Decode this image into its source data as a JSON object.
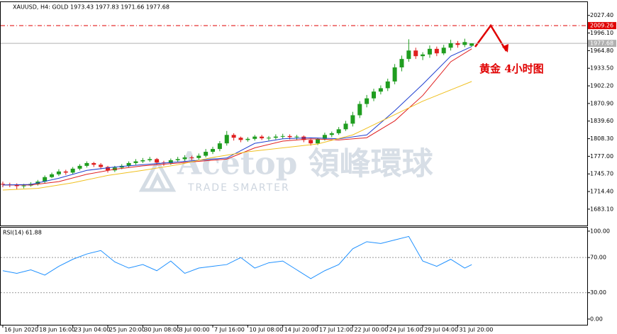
{
  "chart_data": [
    {
      "type": "candlestick",
      "title": "XAUUSD, H4:  GOLD  1973.43 1977.83 1971.66 1977.68",
      "up_color": "#1f9d1f",
      "down_color": "#e02020",
      "open": [
        1728,
        1727,
        1726,
        1724,
        1725,
        1728,
        1732,
        1740,
        1745,
        1750,
        1748,
        1755,
        1760,
        1765,
        1762,
        1758,
        1752,
        1757,
        1760,
        1765,
        1768,
        1770,
        1772,
        1766,
        1765,
        1770,
        1772,
        1775,
        1774,
        1778,
        1785,
        1790,
        1800,
        1815,
        1810,
        1806,
        1808,
        1812,
        1809,
        1810,
        1812,
        1813,
        1811,
        1812,
        1806,
        1800,
        1808,
        1815,
        1818,
        1825,
        1835,
        1850,
        1870,
        1880,
        1892,
        1898,
        1910,
        1935,
        1950,
        1965,
        1955,
        1958,
        1968,
        1960,
        1970,
        1978,
        1975,
        1973.43
      ],
      "high": [
        1732,
        1730,
        1729,
        1728,
        1731,
        1735,
        1743,
        1748,
        1754,
        1753,
        1758,
        1763,
        1768,
        1767,
        1765,
        1760,
        1760,
        1763,
        1768,
        1772,
        1774,
        1776,
        1774,
        1769,
        1773,
        1776,
        1779,
        1778,
        1782,
        1790,
        1794,
        1804,
        1822,
        1818,
        1812,
        1811,
        1815,
        1815,
        1813,
        1816,
        1817,
        1816,
        1815,
        1814,
        1808,
        1810,
        1819,
        1821,
        1829,
        1840,
        1856,
        1875,
        1886,
        1897,
        1903,
        1915,
        1941,
        1956,
        1985,
        1970,
        1962,
        1974,
        1972,
        1975,
        1984,
        1982,
        1986,
        1977.83
      ],
      "low": [
        1722,
        1722,
        1718,
        1720,
        1723,
        1725,
        1729,
        1738,
        1742,
        1744,
        1745,
        1752,
        1757,
        1758,
        1754,
        1748,
        1749,
        1754,
        1757,
        1762,
        1765,
        1767,
        1762,
        1760,
        1762,
        1767,
        1769,
        1770,
        1771,
        1775,
        1781,
        1786,
        1796,
        1805,
        1802,
        1803,
        1805,
        1806,
        1805,
        1807,
        1808,
        1807,
        1806,
        1802,
        1796,
        1797,
        1805,
        1811,
        1815,
        1822,
        1830,
        1845,
        1864,
        1875,
        1887,
        1893,
        1905,
        1928,
        1945,
        1950,
        1948,
        1952,
        1955,
        1957,
        1965,
        1970,
        1971,
        1971.66
      ],
      "close": [
        1727,
        1726,
        1724,
        1725,
        1728,
        1732,
        1740,
        1745,
        1750,
        1748,
        1755,
        1760,
        1765,
        1762,
        1758,
        1752,
        1757,
        1760,
        1765,
        1768,
        1770,
        1772,
        1766,
        1765,
        1770,
        1772,
        1775,
        1774,
        1778,
        1785,
        1790,
        1800,
        1815,
        1810,
        1806,
        1808,
        1812,
        1809,
        1810,
        1812,
        1813,
        1811,
        1812,
        1806,
        1800,
        1808,
        1815,
        1818,
        1825,
        1835,
        1850,
        1870,
        1880,
        1892,
        1898,
        1910,
        1935,
        1950,
        1965,
        1955,
        1958,
        1968,
        1960,
        1970,
        1978,
        1975,
        1980,
        1977.68
      ],
      "lines": [
        {
          "color": "#e02020",
          "x": [
            0,
            4,
            8,
            12,
            16,
            20,
            24,
            28,
            32,
            36,
            40,
            44,
            48,
            52,
            56,
            60,
            64,
            67
          ],
          "values": [
            1726,
            1726,
            1732,
            1745,
            1754,
            1760,
            1764,
            1768,
            1772,
            1792,
            1804,
            1808,
            1806,
            1810,
            1840,
            1885,
            1945,
            1968
          ]
        },
        {
          "color": "#1f3fd0",
          "x": [
            0,
            4,
            8,
            12,
            16,
            20,
            24,
            28,
            32,
            36,
            40,
            44,
            48,
            52,
            56,
            60,
            64,
            67
          ],
          "values": [
            1726,
            1727,
            1738,
            1752,
            1758,
            1762,
            1766,
            1770,
            1774,
            1800,
            1808,
            1810,
            1808,
            1815,
            1858,
            1905,
            1955,
            1972
          ]
        },
        {
          "color": "#f0c020",
          "x": [
            0,
            5,
            10,
            15,
            20,
            25,
            30,
            35,
            40,
            45,
            50,
            55,
            60,
            67
          ],
          "values": [
            1717,
            1720,
            1730,
            1743,
            1752,
            1762,
            1775,
            1785,
            1792,
            1799,
            1815,
            1845,
            1875,
            1910
          ]
        }
      ],
      "hlines": [
        {
          "value": 2009.26,
          "color": "#e00000"
        },
        {
          "value": 1977.68,
          "color": "#b0b0b0"
        }
      ],
      "ylim": [
        1654,
        2051
      ],
      "yticks": [
        {
          "value": 2027.4,
          "label": "2027.40"
        },
        {
          "value": 1996.1,
          "label": "1996.10"
        },
        {
          "value": 1964.8,
          "label": "1964.80"
        },
        {
          "value": 1933.5,
          "label": "1933.50"
        },
        {
          "value": 1902.2,
          "label": "1902.20"
        },
        {
          "value": 1870.9,
          "label": "1870.90"
        },
        {
          "value": 1839.6,
          "label": "1839.60"
        },
        {
          "value": 1808.3,
          "label": "1808.30"
        },
        {
          "value": 1777,
          "label": "1777.00"
        },
        {
          "value": 1745.7,
          "label": "1745.70"
        },
        {
          "value": 1714.4,
          "label": "1714.40"
        },
        {
          "value": 1683.1,
          "label": "1683.10"
        }
      ],
      "xlim": [
        -0.3,
        83.5
      ],
      "xticks": [
        {
          "value": 0,
          "label": "16 Jun 2020"
        },
        {
          "value": 5,
          "label": "18 Jun 16:00"
        },
        {
          "value": 10,
          "label": "23 Jun 04:00"
        },
        {
          "value": 15,
          "label": "25 Jun 20:00"
        },
        {
          "value": 20,
          "label": "30 Jun 08:00"
        },
        {
          "value": 25,
          "label": "3 Jul 00:00"
        },
        {
          "value": 30,
          "label": "7 Jul 16:00"
        },
        {
          "value": 35,
          "label": "10 Jul 08:00"
        },
        {
          "value": 40,
          "label": "14 Jul 20:00"
        },
        {
          "value": 45,
          "label": "17 Jul 12:00"
        },
        {
          "value": 50,
          "label": "22 Jul 00:00"
        },
        {
          "value": 55,
          "label": "24 Jul 16:00"
        },
        {
          "value": 60,
          "label": "29 Jul 04:00"
        },
        {
          "value": 65,
          "label": "31 Jul 20:00"
        }
      ],
      "annotation": "黄金  4小时图",
      "watermark": {
        "brand": "Acetop 領峰環球",
        "slogan": "TRADE SMARTER"
      }
    },
    {
      "type": "line",
      "title": "RSI(14) 61.88",
      "color": "#1e90ff",
      "x": [
        0,
        2,
        4,
        6,
        8,
        10,
        12,
        14,
        16,
        18,
        20,
        22,
        24,
        26,
        28,
        30,
        32,
        34,
        36,
        38,
        40,
        42,
        44,
        46,
        48,
        50,
        52,
        54,
        56,
        58,
        60,
        62,
        64,
        66,
        67
      ],
      "values": [
        55,
        52,
        56,
        50,
        60,
        68,
        74,
        78,
        65,
        58,
        62,
        55,
        66,
        52,
        58,
        60,
        62,
        70,
        58,
        64,
        66,
        56,
        46,
        55,
        62,
        80,
        88,
        86,
        90,
        94,
        66,
        60,
        68,
        58,
        61.88
      ],
      "levels": [
        70,
        30
      ],
      "xlim": [
        -0.3,
        83.5
      ],
      "ylim": [
        -6.5,
        104
      ],
      "yticks": [
        {
          "value": 100,
          "label": "100.00"
        },
        {
          "value": 70,
          "label": "70.00"
        },
        {
          "value": 30,
          "label": "30.00"
        },
        {
          "value": 0,
          "label": "0.00"
        }
      ]
    }
  ]
}
